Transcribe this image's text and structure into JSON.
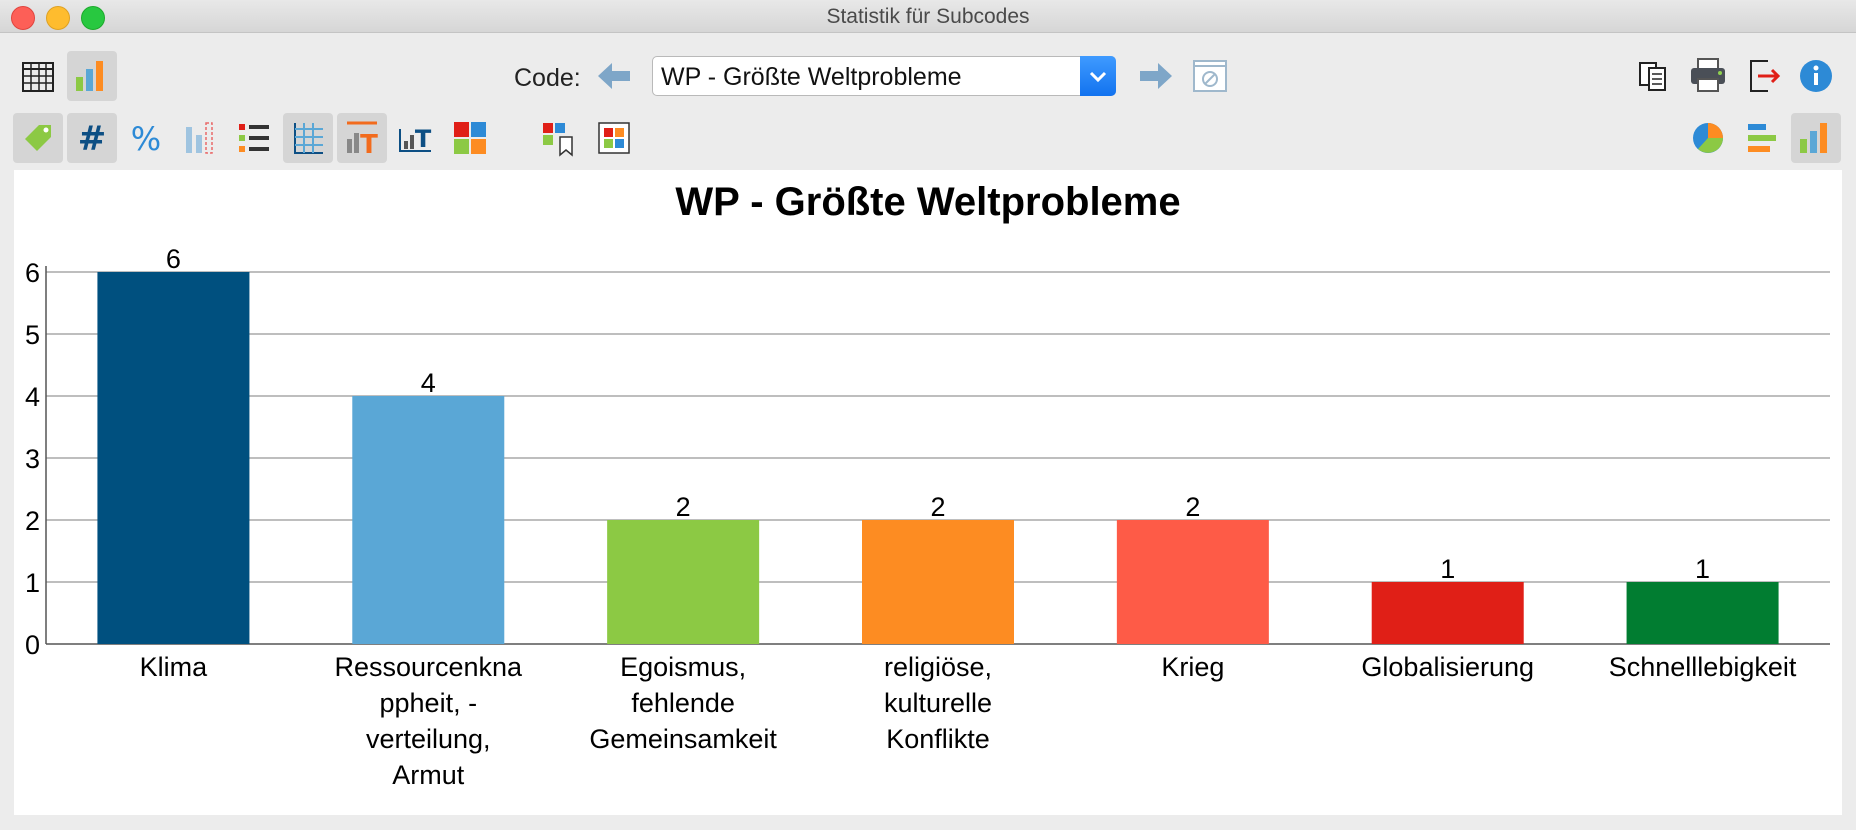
{
  "window": {
    "title": "Statistik für Subcodes"
  },
  "toolbar": {
    "code_label": "Code:",
    "code_value": "WP - Größte Weltprobleme"
  },
  "icons": {
    "row1_left": [
      "table-view-icon",
      "chart-view-icon"
    ],
    "row1_nav": [
      "arrow-left-icon",
      "arrow-right-icon",
      "disabled-filter-icon"
    ],
    "row1_right": [
      "copy-icon",
      "print-icon",
      "export-icon",
      "info-icon"
    ],
    "row2_left": [
      "tag-icon",
      "hash-icon",
      "percent-icon",
      "missing-bars-icon",
      "list-colors-icon",
      "grid-lines-icon",
      "bar-labels-icon",
      "axis-labels-icon",
      "color-palette-icon",
      "color-bookmark-icon",
      "layout-icon"
    ],
    "row2_right": [
      "pie-chart-icon",
      "horizontal-bar-icon",
      "vertical-bar-icon"
    ]
  },
  "chart_data": {
    "type": "bar",
    "title": "WP - Größte Weltprobleme",
    "categories": [
      [
        "Klima"
      ],
      [
        "Ressourcenkna",
        "ppheit, -",
        "verteilung,",
        "Armut"
      ],
      [
        "Egoismus,",
        "fehlende",
        "Gemeinsamkeit"
      ],
      [
        "religiöse,",
        "kulturelle",
        "Konflikte"
      ],
      [
        "Krieg"
      ],
      [
        "Globalisierung"
      ],
      [
        "Schnelllebigkeit"
      ]
    ],
    "values": [
      6,
      4,
      2,
      2,
      2,
      1,
      1
    ],
    "colors": [
      "#00507f",
      "#5aa7d6",
      "#8cc944",
      "#fd8c22",
      "#fe5b47",
      "#e01f17",
      "#017d31"
    ],
    "ylim": [
      0,
      6
    ],
    "yticks": [
      0,
      1,
      2,
      3,
      4,
      5,
      6
    ],
    "grid": true,
    "data_labels": true
  }
}
